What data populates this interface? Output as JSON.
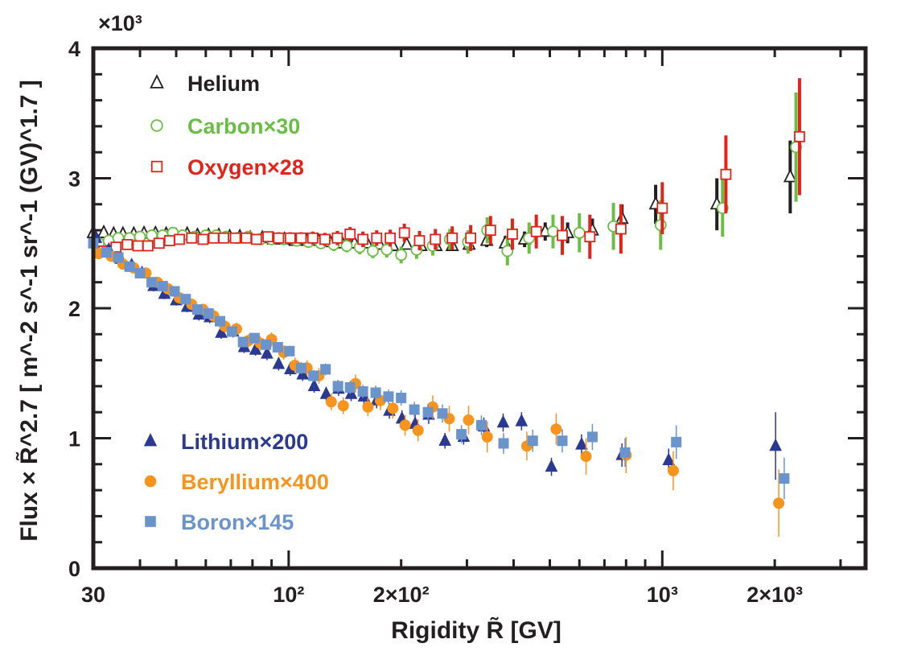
{
  "chart_data": {
    "type": "scatter",
    "xlabel": "Rigidity R̃ [GV]",
    "ylabel": "Flux × R̃^2.7 [ m^-2 s^-1 sr^-1 (GV)^1.7 ]",
    "y_multiplier": "×10³",
    "x_scale": "log",
    "xlim": [
      30,
      3500
    ],
    "ylim": [
      0,
      4000
    ],
    "x_tick_labels": [
      "30",
      "10²",
      "2×10²",
      "10³",
      "2×10³"
    ],
    "y_tick_labels": [
      "0",
      "1",
      "2",
      "3",
      "4"
    ],
    "legend_top": "top-left",
    "legend_bottom": "bottom-left",
    "grid": false,
    "series": [
      {
        "name": "Helium",
        "marker": "triangle-open",
        "color": "#231f20",
        "x": [
          30,
          32,
          34,
          36,
          38.5,
          41,
          44,
          47,
          50,
          53.5,
          57,
          61,
          65,
          69.5,
          74,
          79,
          85,
          91,
          97.5,
          104,
          112,
          120,
          129,
          139,
          150,
          162,
          175,
          190,
          207,
          226,
          248,
          274,
          304,
          339,
          380,
          428,
          486,
          558,
          650,
          780,
          960,
          1400,
          2200
        ],
        "y": [
          2580,
          2580,
          2570,
          2570,
          2570,
          2575,
          2575,
          2570,
          2560,
          2570,
          2560,
          2560,
          2560,
          2550,
          2550,
          2540,
          2540,
          2530,
          2530,
          2520,
          2520,
          2520,
          2510,
          2500,
          2500,
          2500,
          2490,
          2480,
          2490,
          2480,
          2480,
          2480,
          2490,
          2520,
          2500,
          2530,
          2590,
          2580,
          2600,
          2690,
          2800,
          2800,
          3010
        ],
        "err": [
          15,
          15,
          15,
          15,
          15,
          15,
          15,
          15,
          15,
          15,
          15,
          15,
          15,
          15,
          15,
          15,
          15,
          20,
          20,
          20,
          20,
          25,
          25,
          25,
          25,
          30,
          30,
          30,
          35,
          35,
          40,
          40,
          45,
          50,
          55,
          60,
          70,
          80,
          90,
          110,
          150,
          200,
          280
        ]
      },
      {
        "name": "Carbon×30",
        "marker": "circle-open",
        "color": "#6cbd45",
        "x": [
          31,
          33,
          35,
          37.5,
          40,
          43,
          46,
          49,
          52,
          56,
          60,
          64,
          68,
          73,
          78,
          84,
          90,
          97,
          105,
          113,
          122,
          132,
          143,
          155,
          168,
          183,
          200,
          220,
          243,
          270,
          302,
          340,
          385,
          440,
          510,
          600,
          740,
          990,
          1450,
          2280
        ],
        "y": [
          2500,
          2520,
          2540,
          2540,
          2550,
          2560,
          2560,
          2580,
          2560,
          2550,
          2560,
          2560,
          2550,
          2540,
          2550,
          2530,
          2530,
          2530,
          2520,
          2510,
          2500,
          2490,
          2480,
          2470,
          2440,
          2450,
          2410,
          2450,
          2480,
          2530,
          2510,
          2600,
          2440,
          2540,
          2590,
          2580,
          2630,
          2640,
          2770,
          3240
        ],
        "err": [
          30,
          30,
          30,
          30,
          30,
          30,
          30,
          35,
          35,
          35,
          35,
          35,
          35,
          35,
          40,
          40,
          40,
          40,
          45,
          45,
          45,
          50,
          50,
          55,
          55,
          60,
          65,
          70,
          75,
          80,
          90,
          100,
          110,
          120,
          130,
          150,
          180,
          190,
          220,
          420
        ]
      },
      {
        "name": "Oxygen×28",
        "marker": "square-open",
        "color": "#e2231a",
        "x": [
          32,
          34.5,
          37,
          39.5,
          42,
          45,
          48,
          51,
          55,
          59,
          63,
          67,
          72,
          77,
          82,
          88,
          94,
          101,
          108,
          116,
          125,
          135,
          146,
          158,
          172,
          187,
          204,
          224,
          247,
          274,
          307,
          347,
          397,
          460,
          540,
          640,
          775,
          1000,
          1480,
          2330
        ],
        "y": [
          2440,
          2470,
          2490,
          2480,
          2480,
          2500,
          2520,
          2530,
          2540,
          2530,
          2540,
          2540,
          2540,
          2540,
          2530,
          2550,
          2540,
          2540,
          2540,
          2540,
          2530,
          2540,
          2570,
          2530,
          2540,
          2540,
          2580,
          2520,
          2530,
          2540,
          2540,
          2600,
          2570,
          2590,
          2560,
          2550,
          2610,
          2770,
          3030,
          3320
        ],
        "err": [
          30,
          30,
          30,
          30,
          30,
          30,
          35,
          35,
          35,
          35,
          35,
          35,
          40,
          40,
          40,
          40,
          45,
          45,
          45,
          50,
          50,
          55,
          55,
          60,
          60,
          65,
          70,
          75,
          80,
          90,
          100,
          110,
          120,
          130,
          150,
          170,
          190,
          200,
          300,
          450
        ]
      },
      {
        "name": "Lithium×200",
        "marker": "triangle-filled",
        "color": "#2b3990",
        "x": [
          30.5,
          33,
          35.5,
          38,
          40.5,
          43.5,
          46.5,
          50,
          53.5,
          57.5,
          61.5,
          66,
          71,
          76,
          81.5,
          87.5,
          94,
          101,
          109,
          117,
          126,
          136,
          147,
          159,
          172,
          186,
          201,
          218,
          237,
          262,
          294,
          333,
          375,
          420,
          505,
          608,
          780,
          1040,
          2010
        ],
        "y": [
          2540,
          2450,
          2380,
          2330,
          2270,
          2170,
          2110,
          2060,
          2010,
          1950,
          1930,
          1810,
          1820,
          1700,
          1680,
          1650,
          1570,
          1530,
          1490,
          1400,
          1340,
          1380,
          1340,
          1320,
          1290,
          1210,
          1150,
          1110,
          1180,
          980,
          1010,
          1090,
          1120,
          1130,
          780,
          950,
          870,
          830,
          940
        ],
        "err": [
          40,
          40,
          40,
          40,
          40,
          40,
          40,
          40,
          40,
          45,
          45,
          45,
          45,
          45,
          45,
          50,
          50,
          50,
          50,
          50,
          55,
          55,
          55,
          60,
          60,
          60,
          65,
          70,
          70,
          60,
          60,
          70,
          70,
          70,
          70,
          80,
          90,
          90,
          260
        ]
      },
      {
        "name": "Beryllium×400",
        "marker": "circle-filled",
        "color": "#f7941d",
        "x": [
          31,
          33.5,
          36,
          38.5,
          41.5,
          44.5,
          47.5,
          51,
          55,
          59,
          63,
          67.5,
          72.5,
          78,
          84,
          90,
          97,
          104,
          112,
          120.5,
          130,
          140,
          151,
          163,
          176,
          190,
          205,
          222,
          243,
          269,
          303,
          340,
          434,
          520,
          625,
          800,
          1070,
          2050
        ],
        "y": [
          2420,
          2400,
          2340,
          2310,
          2270,
          2200,
          2150,
          2080,
          2030,
          1990,
          1940,
          1860,
          1840,
          1750,
          1730,
          1760,
          1660,
          1560,
          1540,
          1480,
          1280,
          1250,
          1420,
          1240,
          1290,
          1230,
          1100,
          1060,
          1240,
          1150,
          1140,
          1010,
          940,
          1070,
          860,
          870,
          750,
          500
        ],
        "err": [
          40,
          40,
          40,
          40,
          40,
          40,
          45,
          45,
          45,
          45,
          50,
          50,
          50,
          50,
          55,
          55,
          55,
          60,
          60,
          60,
          65,
          65,
          70,
          70,
          75,
          80,
          80,
          85,
          90,
          100,
          110,
          120,
          110,
          120,
          140,
          140,
          150,
          260
        ]
      },
      {
        "name": "Boron×145",
        "marker": "square-filled",
        "color": "#6b93cc",
        "x": [
          30,
          32.5,
          35,
          37.5,
          40,
          43,
          46,
          49.5,
          53,
          57,
          61,
          65.5,
          70.5,
          75.5,
          81,
          87,
          93.5,
          100.5,
          108,
          116.5,
          125.5,
          135.5,
          146,
          158,
          171,
          185,
          200,
          217,
          236,
          258,
          290,
          328,
          376,
          450,
          540,
          650,
          795,
          1090,
          2120
        ],
        "y": [
          2500,
          2430,
          2390,
          2320,
          2270,
          2200,
          2170,
          2130,
          2070,
          1990,
          1960,
          1900,
          1820,
          1740,
          1770,
          1720,
          1700,
          1670,
          1540,
          1480,
          1530,
          1400,
          1390,
          1360,
          1350,
          1320,
          1310,
          1220,
          1200,
          1190,
          1030,
          1100,
          960,
          980,
          980,
          1010,
          890,
          970,
          690
        ],
        "err": [
          30,
          30,
          30,
          30,
          30,
          30,
          30,
          35,
          35,
          35,
          35,
          35,
          35,
          40,
          40,
          40,
          40,
          40,
          45,
          45,
          45,
          50,
          50,
          50,
          55,
          55,
          60,
          60,
          65,
          70,
          70,
          75,
          80,
          85,
          90,
          100,
          110,
          130,
          160
        ]
      }
    ]
  }
}
